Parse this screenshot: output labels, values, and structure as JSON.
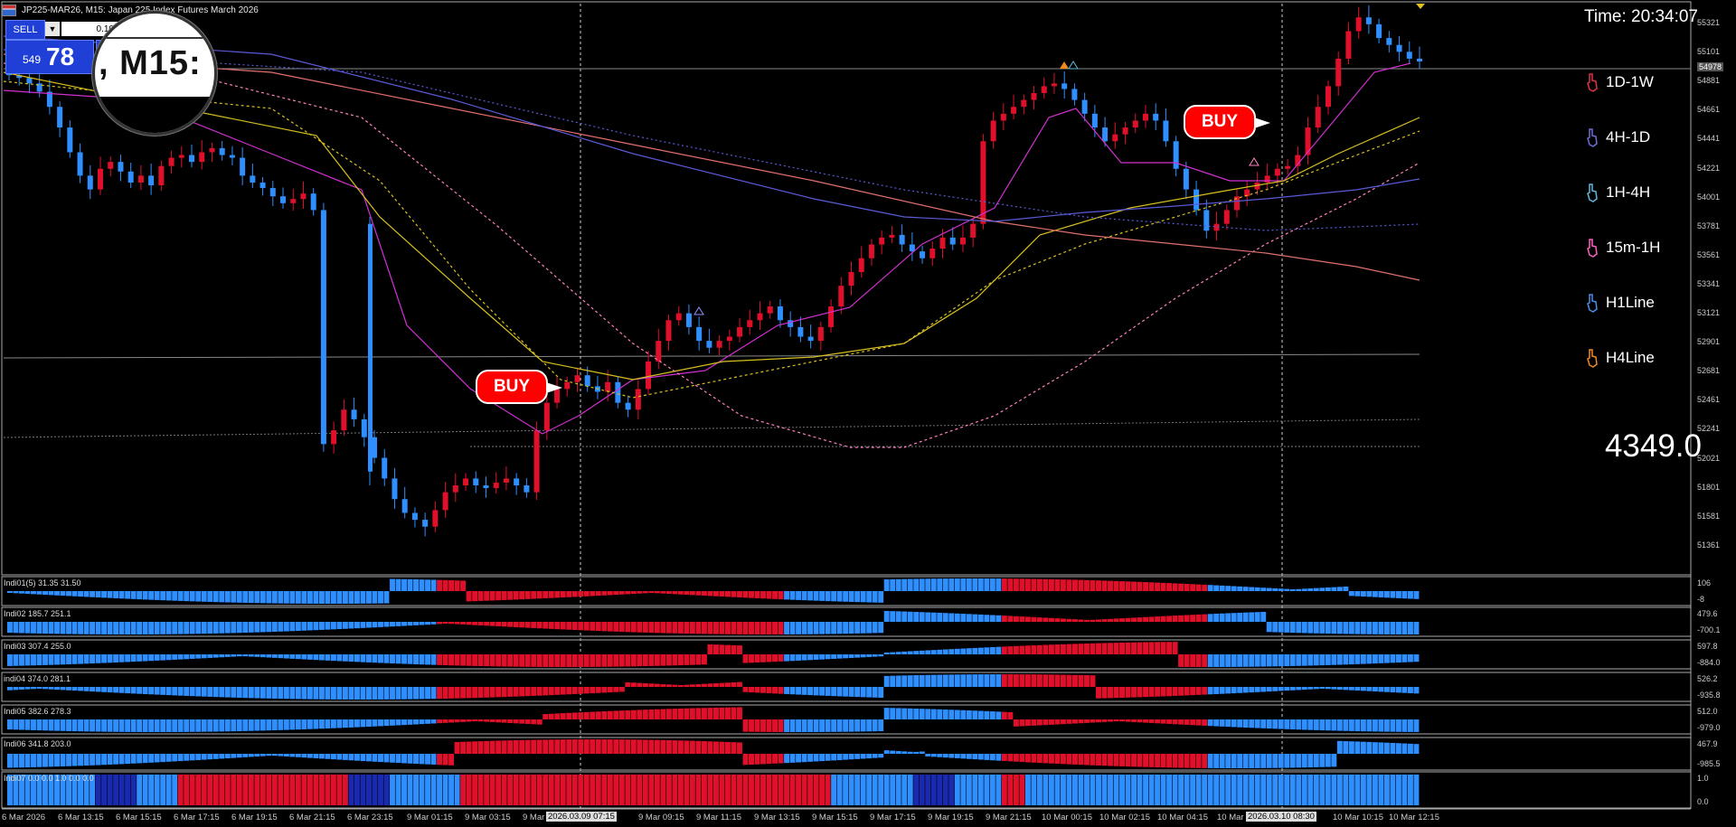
{
  "title_bar": {
    "symbol_text": "JP225-MAR26, M15:  Japan 225 Index Futures March 2026"
  },
  "trade_panel": {
    "sell_label": "SELL",
    "lot_value": "0.10",
    "bid_small": "549",
    "bid_big": "78",
    "dropdown_glyph": "▼"
  },
  "magnifier": {
    "text": ", M15:"
  },
  "time_label": "Time: 20:34:07",
  "big_number": "4349.0",
  "current_price_tag": "54978",
  "timeframes": [
    {
      "label": "1D-1W",
      "color": "#e0304a"
    },
    {
      "label": "4H-1D",
      "color": "#6f6fd8"
    },
    {
      "label": "1H-4H",
      "color": "#5fb8e0"
    },
    {
      "label": "15m-1H",
      "color": "#ff60c0"
    },
    {
      "label": "H1Line",
      "color": "#4a8ee8"
    },
    {
      "label": "H4Line",
      "color": "#f08a20"
    }
  ],
  "buy_signals": [
    {
      "label": "BUY"
    },
    {
      "label": "BUY"
    }
  ],
  "price_axis": [
    "55321",
    "55101",
    "54881",
    "54661",
    "54441",
    "54221",
    "54001",
    "53781",
    "53561",
    "53341",
    "53121",
    "52901",
    "52681",
    "52461",
    "52241",
    "52021",
    "51801",
    "51581",
    "51361"
  ],
  "indicators": [
    {
      "label": "Indi01(5) 31.35 31.50",
      "axis_top": "106",
      "axis_bottom": "-8"
    },
    {
      "label": "Indi02 185.7 251.1",
      "axis_top": "479.6",
      "axis_bottom": "-700.1"
    },
    {
      "label": "Indi03 307.4 255.0",
      "axis_top": "597.8",
      "axis_bottom": "-884.0"
    },
    {
      "label": "indi04 374.0 281.1",
      "axis_top": "526.2",
      "axis_bottom": "-935.8"
    },
    {
      "label": "Indi05 382.6 278.3",
      "axis_top": "512.0",
      "axis_bottom": "-979.0"
    },
    {
      "label": "Indi06 341.8 203.0",
      "axis_top": "467.9",
      "axis_bottom": "-985.5"
    },
    {
      "label": "Indi07 0.0 0.0 1.0 0.0 0.0",
      "axis_top": "1.0",
      "axis_bottom": "0.0"
    }
  ],
  "date_axis": [
    "6 Mar 2026",
    "6 Mar 13:15",
    "6 Mar 15:15",
    "6 Mar 17:15",
    "6 Mar 19:15",
    "6 Mar 21:15",
    "6 Mar 23:15",
    "9 Mar 01:15",
    "9 Mar 03:15",
    "9 Mar",
    "9 Mar 09:15",
    "9 Mar 11:15",
    "9 Mar 13:15",
    "9 Mar 15:15",
    "9 Mar 17:15",
    "9 Mar 19:15",
    "9 Mar 21:15",
    "10 Mar 00:15",
    "10 Mar 02:15",
    "10 Mar 04:15",
    "10 Mar",
    "10 Mar 10:15",
    "10 Mar 12:15"
  ],
  "date_highlights": [
    "2026.03.09 07:15",
    "2026.03.10 08:30"
  ],
  "colors": {
    "bull": "#e0102a",
    "bear": "#2f8fff",
    "ma_magenta": "#d030d0",
    "ma_yellow": "#d8c020",
    "ma_pink": "#ff80c0",
    "ma_blue": "#5a5ad8",
    "ma_salmon": "#e07070"
  },
  "chart_data": {
    "type": "candlestick",
    "title": "JP225-MAR26, M15",
    "ylim": [
      51250,
      55400
    ],
    "close_series": [
      54880,
      54860,
      54820,
      54760,
      54650,
      54500,
      54320,
      54150,
      54050,
      54200,
      54250,
      54180,
      54100,
      54150,
      54080,
      54220,
      54280,
      54300,
      54250,
      54320,
      54350,
      54300,
      54280,
      54150,
      54100,
      54060,
      54000,
      53950,
      53980,
      54020,
      53900,
      52200,
      52300,
      52450,
      52380,
      52250,
      52100,
      51950,
      51800,
      51700,
      51650,
      51600,
      51720,
      51850,
      51900,
      51950,
      51900,
      51880,
      51920,
      51950,
      51900,
      51850,
      52300,
      52500,
      52600,
      52650,
      52700,
      52620,
      52580,
      52650,
      52500,
      52450,
      52600,
      52800,
      52950,
      53100,
      53150,
      53050,
      52950,
      52900,
      52950,
      52980,
      53050,
      53100,
      53150,
      53200,
      53100,
      53050,
      52980,
      52950,
      53050,
      53200,
      53350,
      53450,
      53550,
      53650,
      53700,
      53720,
      53650,
      53600,
      53550,
      53620,
      53700,
      53650,
      53700,
      53800,
      54400,
      54550,
      54600,
      54650,
      54700,
      54750,
      54800,
      54820,
      54780,
      54700,
      54600,
      54500,
      54400,
      54450,
      54500,
      54550,
      54600,
      54550,
      54400,
      54200,
      54050,
      53900,
      53750,
      53800,
      53900,
      54000,
      54050,
      54100,
      54150,
      54200,
      54220,
      54300,
      54500,
      54650,
      54800,
      55000,
      55200,
      55300,
      55250,
      55150,
      55100,
      55050,
      55000,
      54980
    ]
  }
}
